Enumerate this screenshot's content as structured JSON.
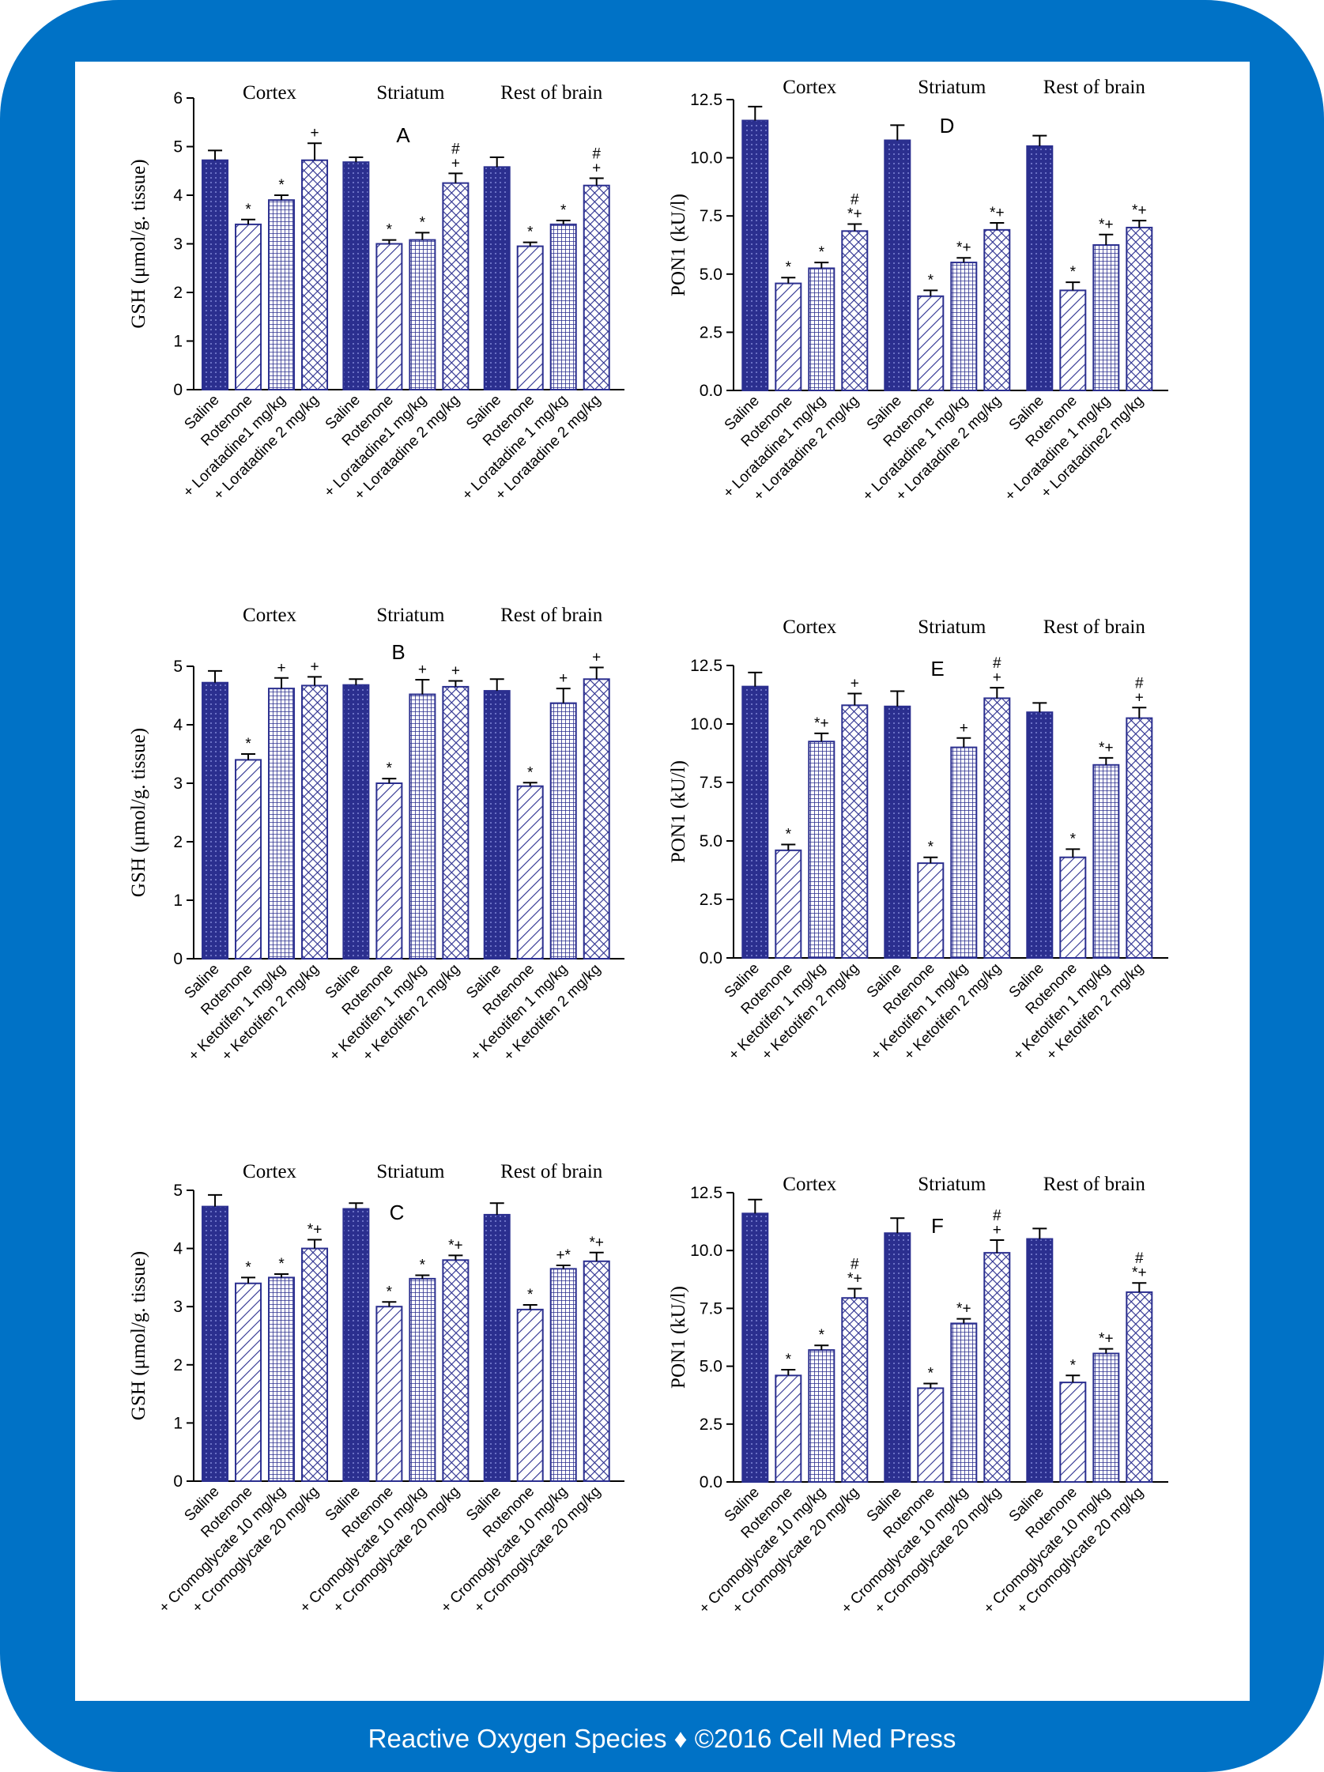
{
  "footer": {
    "text": "Reactive Oxygen Species ♦ ©2016 Cell Med Press"
  },
  "colors": {
    "frame": "#0072c6",
    "bar": "#2b2f8f"
  },
  "chart_data": [
    {
      "panel": "A",
      "type": "bar",
      "ylabel": "GSH (μmol/g. tissue)",
      "ylim": [
        0,
        6
      ],
      "ticks": [
        "0",
        "1",
        "2",
        "3",
        "4",
        "5",
        "6"
      ],
      "groups": [
        "Cortex",
        "Striatum",
        "Rest of brain"
      ],
      "categories": [
        [
          "Saline",
          "Rotenone",
          "+ Loratadine1 mg/kg",
          "+ Loratadine 2 mg/kg"
        ],
        [
          "Saline",
          "Rotenone",
          "+ Loratadine1 mg/kg",
          "+ Loratadine 2 mg/kg"
        ],
        [
          "Saline",
          "Rotenone",
          "+ Loratadine 1 mg/kg",
          "+ Loratadine 2 mg/kg"
        ]
      ],
      "values": [
        [
          4.72,
          3.4,
          3.9,
          4.72
        ],
        [
          4.68,
          3.0,
          3.08,
          4.25
        ],
        [
          4.58,
          2.95,
          3.4,
          4.2
        ]
      ],
      "errors": [
        [
          0.2,
          0.1,
          0.1,
          0.35
        ],
        [
          0.1,
          0.08,
          0.15,
          0.2
        ],
        [
          0.2,
          0.08,
          0.08,
          0.15
        ]
      ],
      "significance": [
        [
          "",
          "*",
          "*",
          "+"
        ],
        [
          "",
          "*",
          "*",
          "#\n+"
        ],
        [
          "",
          "*",
          "*",
          "#\n+"
        ]
      ]
    },
    {
      "panel": "B",
      "type": "bar",
      "ylabel": "GSH (μmol/g. tissue)",
      "ylim": [
        0,
        5
      ],
      "ticks": [
        "0",
        "1",
        "2",
        "3",
        "4",
        "5"
      ],
      "groups": [
        "Cortex",
        "Striatum",
        "Rest of brain"
      ],
      "categories": [
        [
          "Saline",
          "Rotenone",
          "+ Ketotifen 1 mg/kg",
          "+ Ketotifen 2 mg/kg"
        ],
        [
          "Saline",
          "Rotenone",
          "+ Ketotifen 1 mg/kg",
          "+ Ketotifen 2 mg/kg"
        ],
        [
          "Saline",
          "Rotenone",
          "+ Ketotifen 1 mg/kg",
          "+ Ketotifen 2 mg/kg"
        ]
      ],
      "values": [
        [
          4.72,
          3.4,
          4.62,
          4.67
        ],
        [
          4.68,
          3.0,
          4.52,
          4.65
        ],
        [
          4.58,
          2.95,
          4.37,
          4.78
        ]
      ],
      "errors": [
        [
          0.2,
          0.1,
          0.18,
          0.15
        ],
        [
          0.1,
          0.08,
          0.25,
          0.1
        ],
        [
          0.2,
          0.06,
          0.25,
          0.2
        ]
      ],
      "significance": [
        [
          "",
          "*",
          "+",
          "+"
        ],
        [
          "",
          "*",
          "+",
          "+"
        ],
        [
          "",
          "*",
          "+",
          "+"
        ]
      ]
    },
    {
      "panel": "C",
      "type": "bar",
      "ylabel": "GSH (μmol/g. tissue)",
      "ylim": [
        0,
        5
      ],
      "ticks": [
        "0",
        "1",
        "2",
        "3",
        "4",
        "5"
      ],
      "groups": [
        "Cortex",
        "Striatum",
        "Rest of brain"
      ],
      "categories": [
        [
          "Saline",
          "Rotenone",
          "+ Cromoglycate 10 mg/kg",
          "+ Cromoglycate 20 mg/kg"
        ],
        [
          "Saline",
          "Rotenone",
          "+ Cromoglycate 10 mg/kg",
          "+ Cromoglycate 20 mg/kg"
        ],
        [
          "Saline",
          "Rotenone",
          "+ Cromoglycate 10 mg/kg",
          "+ Cromoglycate 20 mg/kg"
        ]
      ],
      "values": [
        [
          4.72,
          3.4,
          3.5,
          4.0
        ],
        [
          4.68,
          3.0,
          3.48,
          3.8
        ],
        [
          4.58,
          2.95,
          3.65,
          3.78
        ]
      ],
      "errors": [
        [
          0.2,
          0.1,
          0.06,
          0.15
        ],
        [
          0.1,
          0.08,
          0.06,
          0.08
        ],
        [
          0.2,
          0.08,
          0.06,
          0.15
        ]
      ],
      "significance": [
        [
          "",
          "*",
          "*",
          "*+"
        ],
        [
          "",
          "*",
          "*",
          "*+"
        ],
        [
          "",
          "*",
          "+*",
          "*+"
        ]
      ]
    },
    {
      "panel": "D",
      "type": "bar",
      "ylabel": "PON1 (kU/l)",
      "ylim": [
        0,
        12.5
      ],
      "ticks": [
        "0.0",
        "2.5",
        "5.0",
        "7.5",
        "10.0",
        "12.5"
      ],
      "groups": [
        "Cortex",
        "Striatum",
        "Rest of brain"
      ],
      "categories": [
        [
          "Saline",
          "Rotenone",
          "+ Loratadine1 mg/kg",
          "+ Loratadine 2 mg/kg"
        ],
        [
          "Saline",
          "Rotenone",
          "+ Loratadine 1 mg/kg",
          "+ Loratadine 2 mg/kg"
        ],
        [
          "Saline",
          "Rotenone",
          "+ Loratadine 1 mg/kg",
          "+ Loratadine2 mg/kg"
        ]
      ],
      "values": [
        [
          11.6,
          4.6,
          5.25,
          6.85
        ],
        [
          10.75,
          4.05,
          5.5,
          6.9
        ],
        [
          10.5,
          4.3,
          6.25,
          7.0
        ]
      ],
      "errors": [
        [
          0.6,
          0.25,
          0.25,
          0.3
        ],
        [
          0.65,
          0.25,
          0.2,
          0.3
        ],
        [
          0.45,
          0.35,
          0.45,
          0.3
        ]
      ],
      "significance": [
        [
          "",
          "*",
          "*",
          "#\n*+"
        ],
        [
          "",
          "*",
          "*+",
          "*+"
        ],
        [
          "",
          "*",
          "*+",
          "*+"
        ]
      ]
    },
    {
      "panel": "E",
      "type": "bar",
      "ylabel": "PON1 (kU/l)",
      "ylim": [
        0,
        12.5
      ],
      "ticks": [
        "0.0",
        "2.5",
        "5.0",
        "7.5",
        "10.0",
        "12.5"
      ],
      "groups": [
        "Cortex",
        "Striatum",
        "Rest of brain"
      ],
      "categories": [
        [
          "Saline",
          "Rotenone",
          "+ Ketotifen 1 mg/kg",
          "+ Ketotifen 2 mg/kg"
        ],
        [
          "Saline",
          "Rotenone",
          "+ Ketotifen 1 mg/kg",
          "+ Ketotifen 2 mg/kg"
        ],
        [
          "Saline",
          "Rotenone",
          "+ Ketotifen 1 mg/kg",
          "+ Ketotifen 2 mg/kg"
        ]
      ],
      "values": [
        [
          11.6,
          4.6,
          9.25,
          10.8
        ],
        [
          10.75,
          4.05,
          9.0,
          11.1
        ],
        [
          10.5,
          4.3,
          8.25,
          10.25
        ]
      ],
      "errors": [
        [
          0.6,
          0.25,
          0.35,
          0.5
        ],
        [
          0.65,
          0.25,
          0.4,
          0.45
        ],
        [
          0.4,
          0.35,
          0.3,
          0.45
        ]
      ],
      "significance": [
        [
          "",
          "*",
          "*+",
          "+"
        ],
        [
          "",
          "*",
          "+",
          "#\n+"
        ],
        [
          "",
          "*",
          "*+",
          "#\n+"
        ]
      ]
    },
    {
      "panel": "F",
      "type": "bar",
      "ylabel": "PON1 (kU/l)",
      "ylim": [
        0,
        12.5
      ],
      "ticks": [
        "0.0",
        "2.5",
        "5.0",
        "7.5",
        "10.0",
        "12.5"
      ],
      "groups": [
        "Cortex",
        "Striatum",
        "Rest of brain"
      ],
      "categories": [
        [
          "Saline",
          "Rotenone",
          "+ Cromoglycate 10 mg/kg",
          "+ Cromoglycate 20 mg/kg"
        ],
        [
          "Saline",
          "Rotenone",
          "+ Cromoglycate 10 mg/kg",
          "+ Cromoglycate 20 mg/kg"
        ],
        [
          "Saline",
          "Rotenone",
          "+ Cromoglycate 10 mg/kg",
          "+ Cromoglycate 20 mg/kg"
        ]
      ],
      "values": [
        [
          11.6,
          4.6,
          5.7,
          7.95
        ],
        [
          10.75,
          4.05,
          6.85,
          9.9
        ],
        [
          10.5,
          4.3,
          5.55,
          8.2
        ]
      ],
      "errors": [
        [
          0.6,
          0.25,
          0.2,
          0.4
        ],
        [
          0.65,
          0.2,
          0.2,
          0.55
        ],
        [
          0.45,
          0.3,
          0.2,
          0.4
        ]
      ],
      "significance": [
        [
          "",
          "*",
          "*",
          "#\n*+"
        ],
        [
          "",
          "*",
          "*+",
          "#\n+"
        ],
        [
          "",
          "*",
          "*+",
          "#\n*+"
        ]
      ]
    }
  ]
}
